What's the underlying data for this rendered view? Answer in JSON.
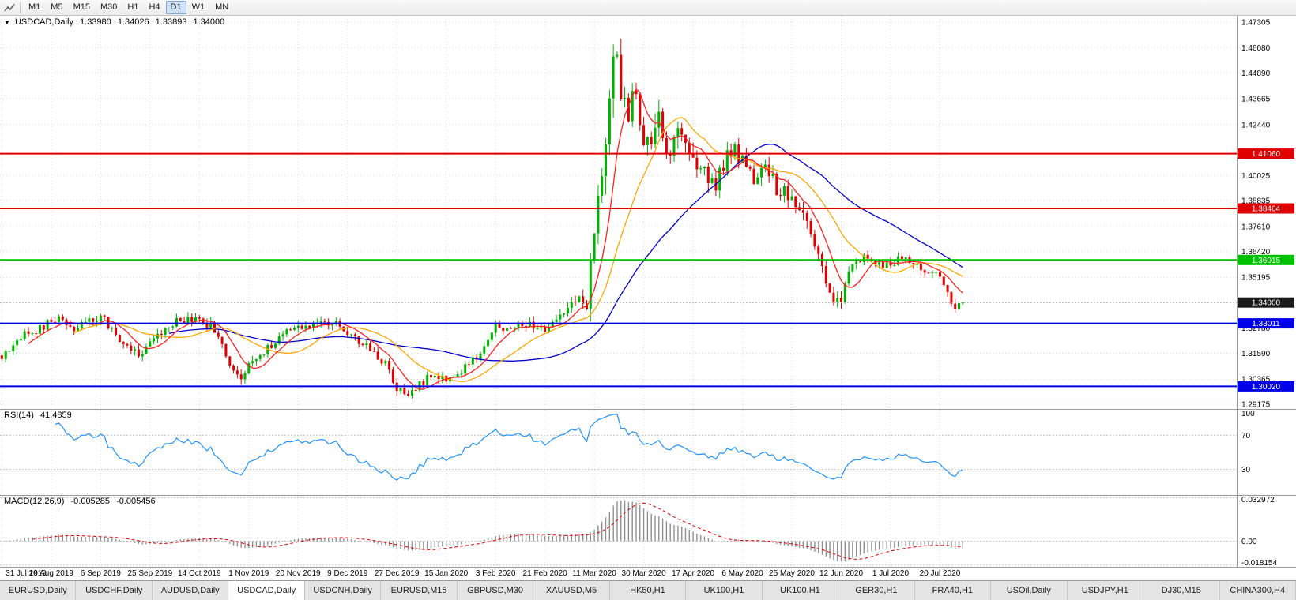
{
  "toolbar": {
    "tools_icon": "chart-tools-icon",
    "timeframes": [
      "M1",
      "M5",
      "M15",
      "M30",
      "H1",
      "H4",
      "D1",
      "W1",
      "MN"
    ],
    "active_timeframe": "D1"
  },
  "main_chart": {
    "symbol": "USDCAD,Daily",
    "open": "1.33980",
    "high": "1.34026",
    "low": "1.33893",
    "close": "1.34000",
    "price_max": 1.476,
    "price_min": 1.2895,
    "y_axis_labels": [
      "1.47305",
      "1.46080",
      "1.44890",
      "1.43665",
      "1.42440",
      "1.40025",
      "1.38835",
      "1.37610",
      "1.36420",
      "1.35195",
      "1.32780",
      "1.31590",
      "1.30365",
      "1.29175"
    ],
    "hlines": [
      {
        "price": 1.4106,
        "label": "1.41060",
        "color": "#e00000"
      },
      {
        "price": 1.38464,
        "label": "1.38464",
        "color": "#e00000"
      },
      {
        "price": 1.36015,
        "label": "1.36015",
        "color": "#00c000"
      },
      {
        "price": 1.33011,
        "label": "1.33011",
        "color": "#0000e6"
      },
      {
        "price": 1.3002,
        "label": "1.30020",
        "color": "#0000e6"
      }
    ],
    "bid_line": {
      "price": 1.34,
      "label": "1.34000",
      "badge_color": "#1a1a1a",
      "line_color": "#a8a8a8"
    },
    "candle_up": "#00b200",
    "candle_down": "#e00000",
    "ma_fast_color": "#ff2020",
    "ma_medium_color": "#ffa500",
    "ma_slow_color": "#0000cc"
  },
  "indicators": {
    "rsi": {
      "label": "RSI(14)",
      "value": "41.4859",
      "color": "#1e90ff",
      "levels": [
        70,
        30
      ],
      "scale_labels": [
        100,
        70,
        30
      ],
      "range": [
        0,
        100
      ]
    },
    "macd": {
      "label": "MACD(12,26,9)",
      "value_main": "-0.005285",
      "value_signal": "-0.005456",
      "scale_labels": [
        "0.032972",
        "0.00",
        "-0.018154"
      ],
      "scale_values": [
        0.032972,
        0,
        -0.018154
      ],
      "max": 0.0345,
      "min": -0.0195,
      "histogram_color": "#909090",
      "signal_color": "#e00000"
    }
  },
  "x_axis": {
    "labels": [
      {
        "text": "31 Jul 2019",
        "bar": 0
      },
      {
        "text": "19 Aug 2019",
        "bar": 13
      },
      {
        "text": "6 Sep 2019",
        "bar": 26
      },
      {
        "text": "25 Sep 2019",
        "bar": 39
      },
      {
        "text": "14 Oct 2019",
        "bar": 52
      },
      {
        "text": "1 Nov 2019",
        "bar": 65
      },
      {
        "text": "20 Nov 2019",
        "bar": 78
      },
      {
        "text": "9 Dec 2019",
        "bar": 91
      },
      {
        "text": "27 Dec 2019",
        "bar": 104
      },
      {
        "text": "15 Jan 2020",
        "bar": 117
      },
      {
        "text": "3 Feb 2020",
        "bar": 130
      },
      {
        "text": "21 Feb 2020",
        "bar": 143
      },
      {
        "text": "11 Mar 2020",
        "bar": 156
      },
      {
        "text": "30 Mar 2020",
        "bar": 169
      },
      {
        "text": "17 Apr 2020",
        "bar": 182
      },
      {
        "text": "6 May 2020",
        "bar": 195
      },
      {
        "text": "25 May 2020",
        "bar": 208
      },
      {
        "text": "12 Jun 2020",
        "bar": 221
      },
      {
        "text": "1 Jul 2020",
        "bar": 234
      },
      {
        "text": "20 Jul 2020",
        "bar": 247
      }
    ]
  },
  "tab_bar": {
    "active_index": 3,
    "tabs": [
      "EURUSD,Daily",
      "USDCHF,Daily",
      "AUDUSD,Daily",
      "USDCAD,Daily",
      "USDCNH,Daily",
      "EURUSD,M15",
      "GBPUSD,M30",
      "XAUUSD,M5",
      "HK50,H1",
      "UK100,H1",
      "UK100,H1",
      "GER30,H1",
      "FRA40,H1",
      "USOil,Daily",
      "USDJPY,H1",
      "DJ30,M15",
      "CHINA300,H4"
    ],
    "active_tab": "USDCAD,Daily"
  },
  "chart_data": {
    "type": "candlestick",
    "symbol": "USDCAD",
    "timeframe": "Daily",
    "bars": 254,
    "data_width_frac": 0.78,
    "x_range": [
      "31 Jul 2019",
      "29 Jul 2020"
    ],
    "y_range": [
      1.2895,
      1.476
    ],
    "last_bar": {
      "open": 1.3398,
      "high": 1.34026,
      "low": 1.33893,
      "close": 1.34
    },
    "key_levels": {
      "resistance": [
        1.4106,
        1.38464
      ],
      "pivot": 1.36015,
      "support": [
        1.33011,
        1.3002
      ],
      "current_price": 1.34
    },
    "overlays": [
      {
        "name": "MA fast",
        "period": 8,
        "color": "#ff2020"
      },
      {
        "name": "MA medium",
        "period": 20,
        "color": "#ffa500"
      },
      {
        "name": "MA slow",
        "period": 45,
        "color": "#0000cc"
      }
    ],
    "price_path": [
      [
        0,
        1.315
      ],
      [
        3,
        1.319
      ],
      [
        6,
        1.325
      ],
      [
        9,
        1.327
      ],
      [
        13,
        1.331
      ],
      [
        16,
        1.332
      ],
      [
        19,
        1.327
      ],
      [
        22,
        1.331
      ],
      [
        26,
        1.334
      ],
      [
        29,
        1.327
      ],
      [
        33,
        1.319
      ],
      [
        36,
        1.314
      ],
      [
        39,
        1.32
      ],
      [
        43,
        1.329
      ],
      [
        47,
        1.331
      ],
      [
        52,
        1.333
      ],
      [
        55,
        1.329
      ],
      [
        58,
        1.319
      ],
      [
        61,
        1.307
      ],
      [
        63,
        1.305
      ],
      [
        66,
        1.314
      ],
      [
        70,
        1.318
      ],
      [
        74,
        1.325
      ],
      [
        78,
        1.33
      ],
      [
        82,
        1.328
      ],
      [
        86,
        1.33
      ],
      [
        90,
        1.328
      ],
      [
        94,
        1.322
      ],
      [
        98,
        1.316
      ],
      [
        101,
        1.311
      ],
      [
        104,
        1.299
      ],
      [
        107,
        1.2955
      ],
      [
        110,
        1.301
      ],
      [
        113,
        1.305
      ],
      [
        117,
        1.304
      ],
      [
        121,
        1.307
      ],
      [
        125,
        1.314
      ],
      [
        128,
        1.321
      ],
      [
        130,
        1.329
      ],
      [
        133,
        1.326
      ],
      [
        136,
        1.329
      ],
      [
        139,
        1.331
      ],
      [
        143,
        1.325
      ],
      [
        146,
        1.33
      ],
      [
        149,
        1.339
      ],
      [
        152,
        1.343
      ],
      [
        154,
        1.338
      ],
      [
        156,
        1.375
      ],
      [
        158,
        1.395
      ],
      [
        160,
        1.44
      ],
      [
        161,
        1.456
      ],
      [
        163,
        1.445
      ],
      [
        165,
        1.43
      ],
      [
        167,
        1.442
      ],
      [
        169,
        1.41
      ],
      [
        171,
        1.416
      ],
      [
        173,
        1.428
      ],
      [
        175,
        1.406
      ],
      [
        177,
        1.415
      ],
      [
        179,
        1.424
      ],
      [
        182,
        1.409
      ],
      [
        185,
        1.401
      ],
      [
        188,
        1.397
      ],
      [
        191,
        1.409
      ],
      [
        193,
        1.413
      ],
      [
        195,
        1.406
      ],
      [
        198,
        1.397
      ],
      [
        201,
        1.405
      ],
      [
        204,
        1.394
      ],
      [
        208,
        1.391
      ],
      [
        211,
        1.379
      ],
      [
        214,
        1.369
      ],
      [
        217,
        1.35
      ],
      [
        219,
        1.339
      ],
      [
        221,
        1.342
      ],
      [
        224,
        1.357
      ],
      [
        227,
        1.363
      ],
      [
        230,
        1.358
      ],
      [
        234,
        1.359
      ],
      [
        237,
        1.361
      ],
      [
        240,
        1.357
      ],
      [
        243,
        1.3545
      ],
      [
        246,
        1.3555
      ],
      [
        248,
        1.347
      ],
      [
        250,
        1.339
      ],
      [
        251,
        1.336
      ],
      [
        252,
        1.338
      ],
      [
        253,
        1.34
      ]
    ],
    "volatility_path": [
      [
        0,
        0.0048
      ],
      [
        30,
        0.0048
      ],
      [
        60,
        0.005
      ],
      [
        100,
        0.0046
      ],
      [
        140,
        0.005
      ],
      [
        150,
        0.006
      ],
      [
        155,
        0.011
      ],
      [
        158,
        0.018
      ],
      [
        162,
        0.02
      ],
      [
        166,
        0.016
      ],
      [
        170,
        0.014
      ],
      [
        176,
        0.011
      ],
      [
        184,
        0.009
      ],
      [
        195,
        0.0085
      ],
      [
        205,
        0.008
      ],
      [
        215,
        0.0075
      ],
      [
        222,
        0.0065
      ],
      [
        232,
        0.005
      ],
      [
        247,
        0.0045
      ],
      [
        253,
        0.004
      ]
    ],
    "indicator_panels": [
      {
        "type": "rsi",
        "period": 14,
        "current": 41.4859,
        "range": [
          0,
          100
        ],
        "levels": [
          70,
          30
        ]
      },
      {
        "type": "macd",
        "params": [
          12,
          26,
          9
        ],
        "current_macd": -0.005285,
        "current_signal": -0.005456,
        "scale": [
          0.032972,
          0,
          -0.018154
        ]
      }
    ]
  }
}
